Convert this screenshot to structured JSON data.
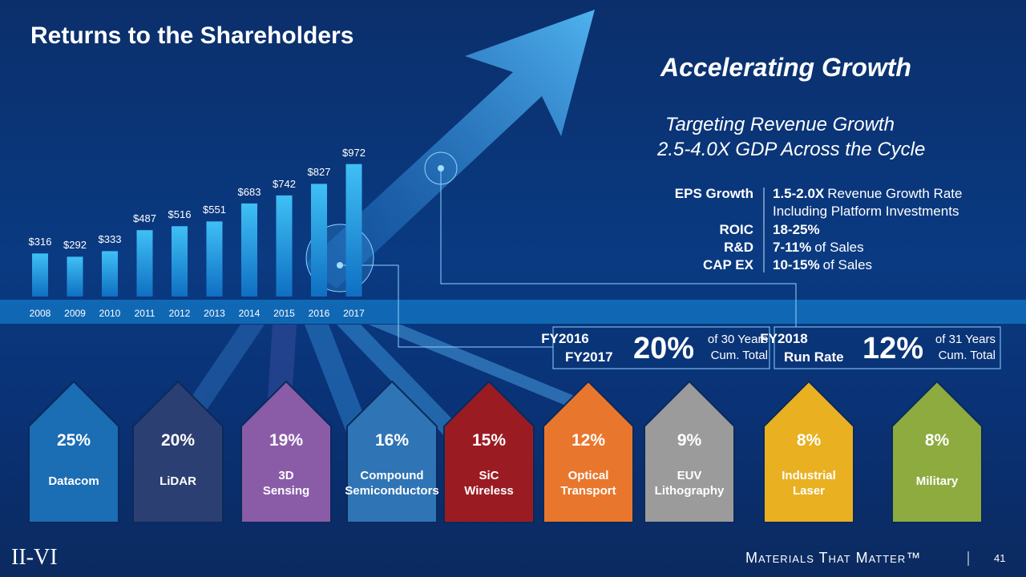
{
  "title": "Returns to the Shareholders",
  "chart_data": {
    "type": "bar",
    "categories": [
      "2008",
      "2009",
      "2010",
      "2011",
      "2012",
      "2013",
      "2014",
      "2015",
      "2016",
      "2017"
    ],
    "values": [
      316,
      292,
      333,
      487,
      516,
      551,
      683,
      742,
      827,
      972
    ],
    "value_labels": [
      "$316",
      "$292",
      "$333",
      "$487",
      "$516",
      "$551",
      "$683",
      "$742",
      "$827",
      "$972"
    ]
  },
  "growth": {
    "heading": "Accelerating Growth",
    "target": [
      "Targeting Revenue Growth",
      "2.5-4.0X GDP Across the Cycle"
    ],
    "metrics": [
      {
        "label": "EPS Growth",
        "bold": "1.5-2.0X",
        "text": "Revenue Growth Rate",
        "note": "Including Platform Investments"
      },
      {
        "label": "ROIC",
        "bold": "18-25%"
      },
      {
        "label": "R&D",
        "bold": "7-11%",
        "text": "of Sales"
      },
      {
        "label": "CAP EX",
        "bold": "10-15%",
        "text": "of Sales"
      }
    ]
  },
  "boxes": [
    {
      "period": [
        "FY2016",
        "FY2017"
      ],
      "value": "20%",
      "note": [
        "of 30 Years",
        "Cum. Total"
      ]
    },
    {
      "period": [
        "FY2018",
        "Run Rate"
      ],
      "value": "12%",
      "note": [
        "of 31 Years",
        "Cum. Total"
      ]
    }
  ],
  "segments": [
    {
      "percent": "25%",
      "name": [
        "Datacom"
      ]
    },
    {
      "percent": "20%",
      "name": [
        "LiDAR"
      ]
    },
    {
      "percent": "19%",
      "name": [
        "3D",
        "Sensing"
      ]
    },
    {
      "percent": "16%",
      "name": [
        "Compound",
        "Semiconductors"
      ]
    },
    {
      "percent": "15%",
      "name": [
        "SiC",
        "Wireless"
      ]
    },
    {
      "percent": "12%",
      "name": [
        "Optical",
        "Transport"
      ]
    },
    {
      "percent": "9%",
      "name": [
        "EUV",
        "Lithography"
      ]
    },
    {
      "percent": "8%",
      "name": [
        "Industrial",
        "Laser"
      ]
    },
    {
      "percent": "8%",
      "name": [
        "Military"
      ]
    }
  ],
  "footer": {
    "logo": "II-VI",
    "tagline": "Materials That Matter™",
    "page": "41"
  }
}
